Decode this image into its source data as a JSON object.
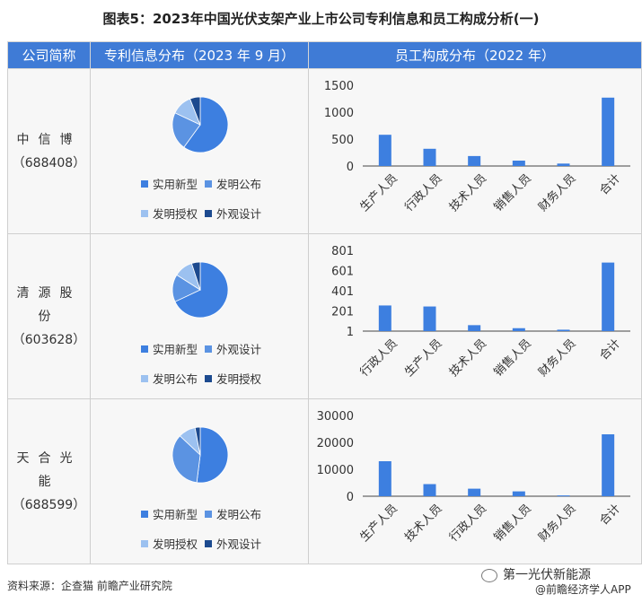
{
  "title": "图表5：2023年中国光伏支架产业上市公司专利信息和员工构成分析(一)",
  "headers": {
    "company": "公司简称",
    "patent": "专利信息分布（2023 年 9 月）",
    "staff": "员工构成分布（2022 年）"
  },
  "rows": [
    {
      "company": "中信博",
      "code": "（688408）",
      "legend": [
        "实用新型",
        "发明公布",
        "发明授权",
        "外观设计"
      ]
    },
    {
      "company": "清源股份",
      "code": "（603628）",
      "legend": [
        "实用新型",
        "外观设计",
        "发明公布",
        "发明授权"
      ]
    },
    {
      "company": "天合光能",
      "code": "（688599）",
      "legend": [
        "实用新型",
        "发明公布",
        "发明授权",
        "外观设计"
      ]
    }
  ],
  "colors": {
    "header": "#3f7bd6",
    "bar": "#3d7fe0",
    "pie": [
      "#3d7fe0",
      "#5b93e2",
      "#9cc1f0",
      "#1c4a8f"
    ]
  },
  "chart_data": [
    {
      "type": "pie",
      "labels": [
        "实用新型",
        "发明公布",
        "发明授权",
        "外观设计"
      ],
      "values": [
        60,
        22,
        12,
        6
      ]
    },
    {
      "type": "bar",
      "categories": [
        "生产人员",
        "行政人员",
        "技术人员",
        "销售人员",
        "财务人员",
        "合计"
      ],
      "values": [
        580,
        320,
        185,
        100,
        45,
        1270
      ],
      "ylim": [
        0,
        1500
      ],
      "yticks": [
        "0",
        "500",
        "1000",
        "1500"
      ]
    },
    {
      "type": "pie",
      "labels": [
        "实用新型",
        "外观设计",
        "发明公布",
        "发明授权"
      ],
      "values": [
        68,
        16,
        11,
        5
      ]
    },
    {
      "type": "bar",
      "categories": [
        "行政人员",
        "生产人员",
        "技术人员",
        "销售人员",
        "财务人员",
        "合计"
      ],
      "values": [
        255,
        245,
        60,
        30,
        15,
        680
      ],
      "ylim": [
        1,
        801
      ],
      "yticks": [
        "1",
        "201",
        "401",
        "601",
        "801"
      ]
    },
    {
      "type": "pie",
      "labels": [
        "实用新型",
        "发明公布",
        "发明授权",
        "外观设计"
      ],
      "values": [
        52,
        35,
        10,
        3
      ]
    },
    {
      "type": "bar",
      "categories": [
        "生产人员",
        "技术人员",
        "行政人员",
        "销售人员",
        "财务人员",
        "合计"
      ],
      "values": [
        13000,
        4500,
        2800,
        1800,
        300,
        23000
      ],
      "ylim": [
        0,
        30000
      ],
      "yticks": [
        "0",
        "10000",
        "20000",
        "30000"
      ]
    }
  ],
  "source": "资料来源：企查猫 前瞻产业研究院",
  "watermark": {
    "brand": "第一光伏新能源",
    "app": "@前瞻经济学人APP"
  }
}
